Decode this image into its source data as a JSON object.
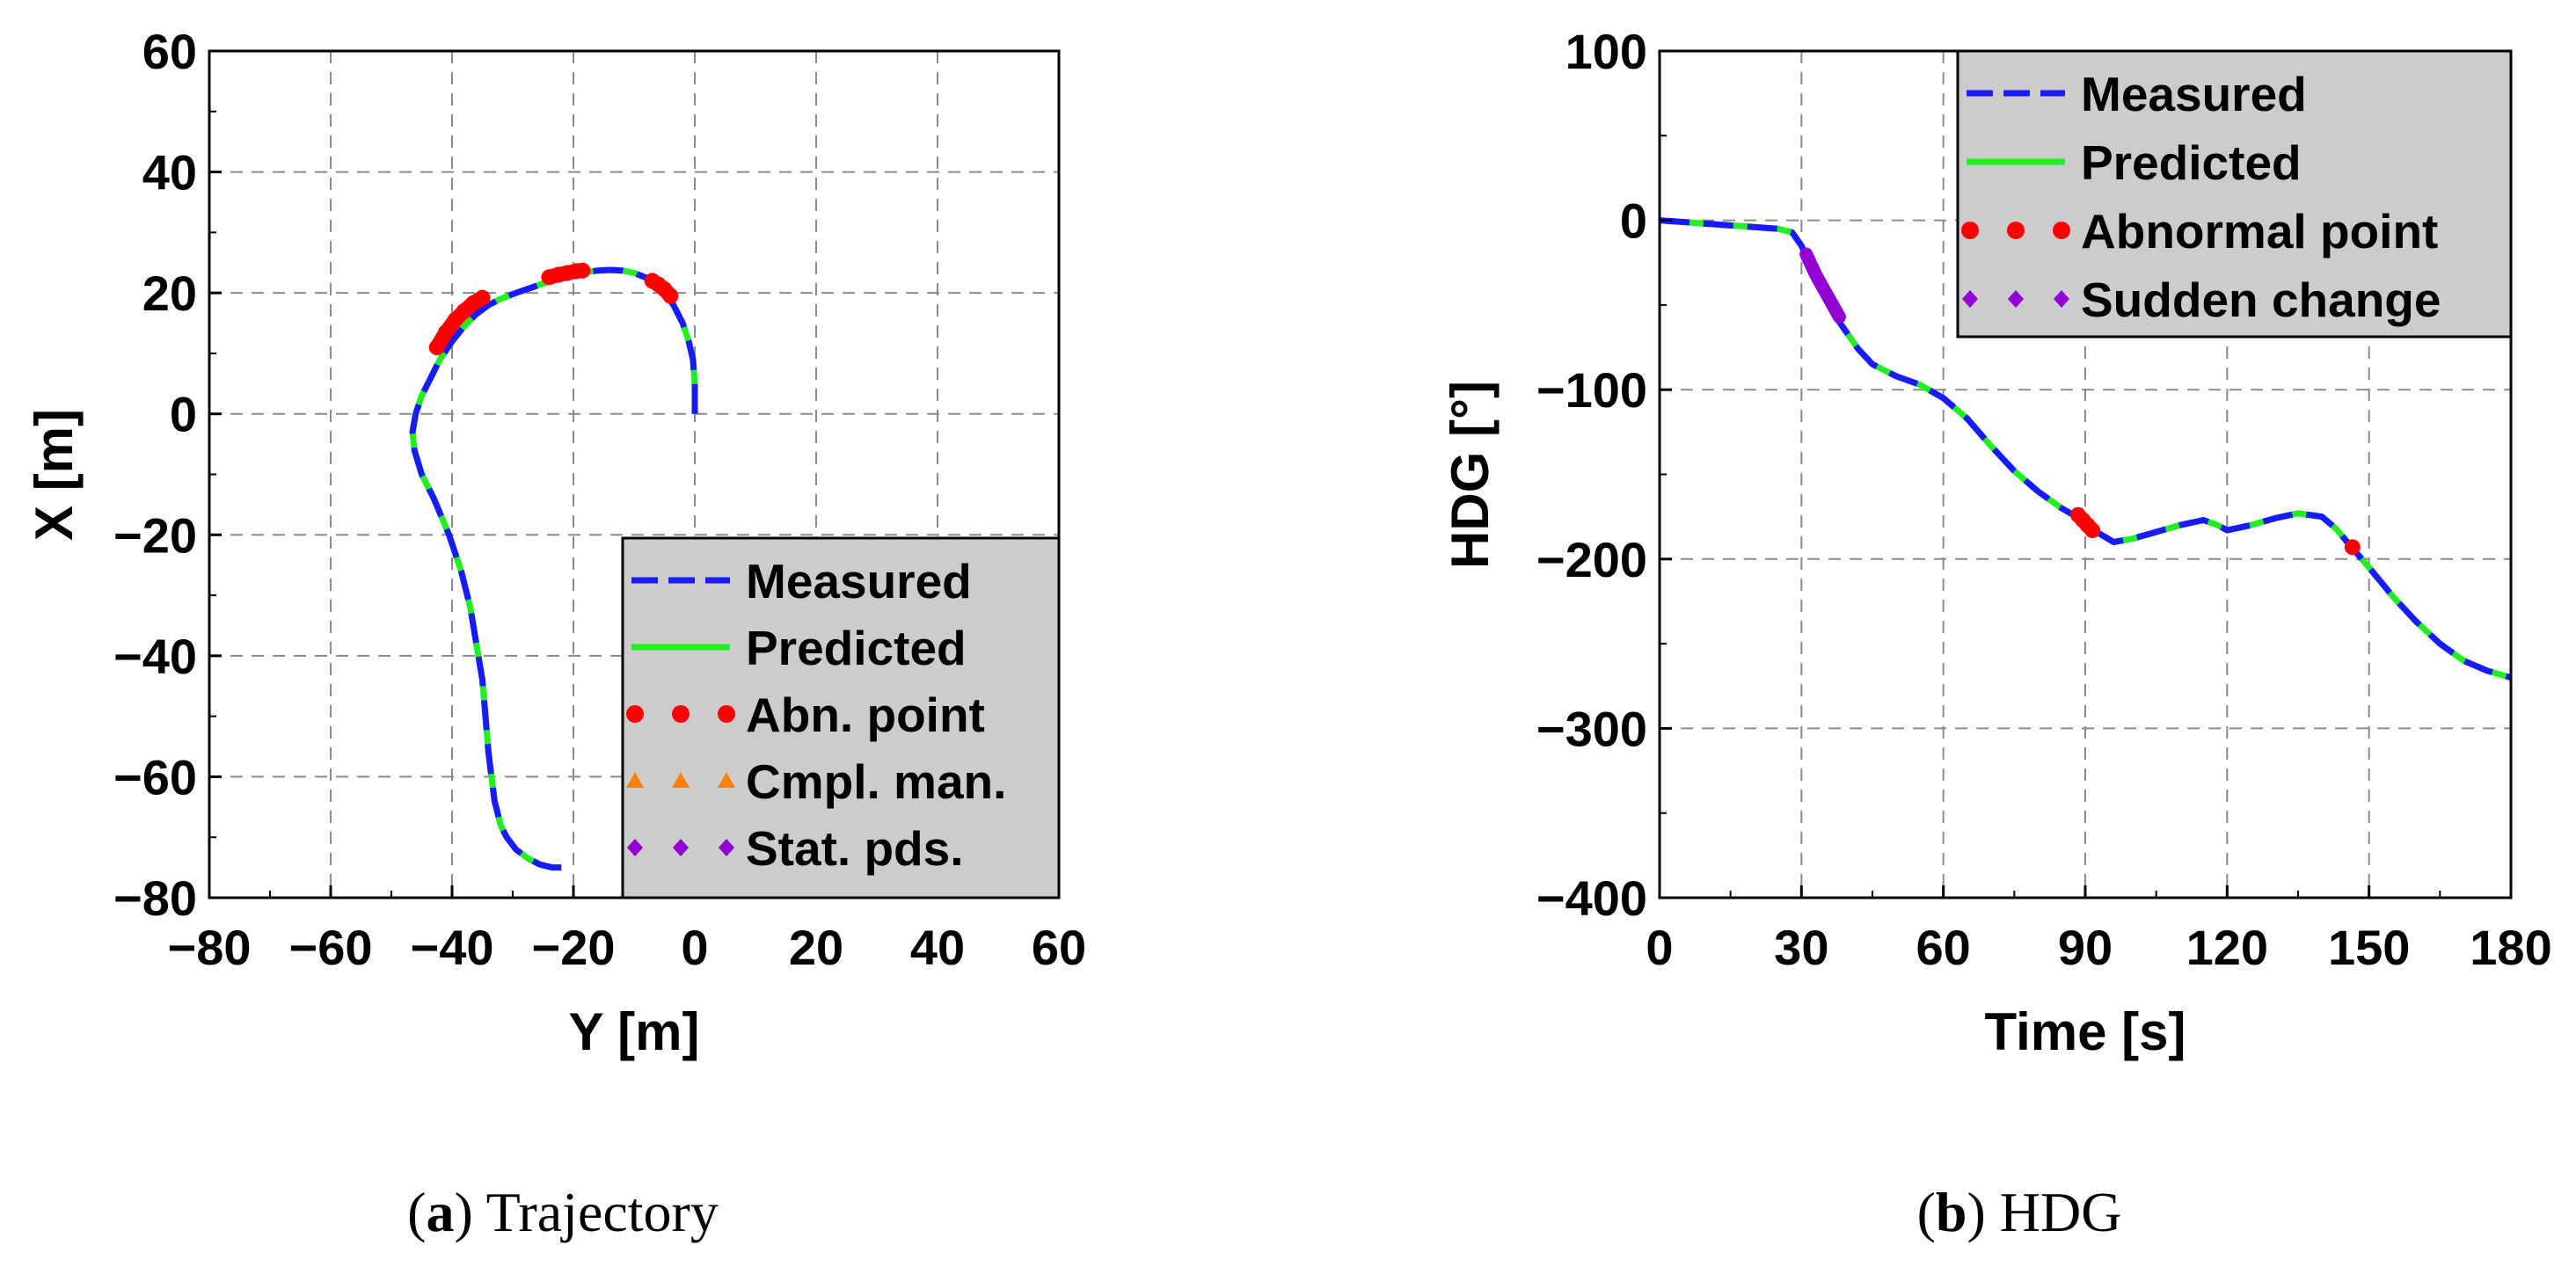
{
  "chart_data": [
    {
      "type": "line",
      "id": "a",
      "caption_letter": "a",
      "caption_text": "Trajectory",
      "xlabel": "Y [m]",
      "ylabel": "X [m]",
      "xlim": [
        -80,
        60
      ],
      "ylim": [
        -80,
        60
      ],
      "xticks": [
        -80,
        -60,
        -40,
        -20,
        0,
        20,
        40,
        60
      ],
      "yticks": [
        -80,
        -60,
        -40,
        -20,
        0,
        20,
        40,
        60
      ],
      "xtick_labels": [
        "−80",
        "−60",
        "−40",
        "−20",
        "0",
        "20",
        "40",
        "60"
      ],
      "ytick_labels": [
        "−80",
        "−60",
        "−40",
        "−20",
        "0",
        "20",
        "40",
        "60"
      ],
      "grid": true,
      "legend_position": "bottom-right",
      "legend": [
        {
          "label": "Measured",
          "style": "dashed-line",
          "color": "#1a1aff"
        },
        {
          "label": "Predicted",
          "style": "solid-line",
          "color": "#22ee22"
        },
        {
          "label": "Abn. point",
          "style": "circle-markers",
          "color": "#ff0000"
        },
        {
          "label": "Cmpl. man.",
          "style": "triangle-markers",
          "color": "#ff7f0e"
        },
        {
          "label": "Stat. pds.",
          "style": "diamond-markers",
          "color": "#9400d3"
        }
      ],
      "series": [
        {
          "name": "Measured",
          "x": [
            0,
            0,
            -0.3,
            -1,
            -2,
            -3.5,
            -5,
            -6.5,
            -8,
            -10,
            -12,
            -14,
            -16,
            -18,
            -20,
            -22,
            -24,
            -26,
            -28,
            -30,
            -32,
            -34,
            -36,
            -38,
            -40,
            -42,
            -43.5,
            -45,
            -46,
            -46.5,
            -46.2,
            -45,
            -43,
            -40.5,
            -38.5,
            -37,
            -36,
            -35,
            -34.5,
            -34,
            -33.5,
            -33,
            -32.5,
            -32,
            -31,
            -29.5,
            -27.5,
            -25.5,
            -23.5,
            -22
          ],
          "y": [
            0,
            5,
            9,
            12,
            15,
            18,
            20,
            21.5,
            22.5,
            23.3,
            23.7,
            23.8,
            23.7,
            23.4,
            23,
            22.5,
            21.9,
            21.2,
            20.5,
            19.8,
            19,
            18,
            16.5,
            14.5,
            12,
            9,
            6,
            3,
            0,
            -3,
            -6,
            -10,
            -14,
            -20,
            -26,
            -32,
            -38,
            -44,
            -50,
            -56,
            -60,
            -64,
            -66,
            -68,
            -70,
            -72,
            -73.5,
            -74.5,
            -75,
            -75
          ]
        },
        {
          "name": "Abn. point",
          "segments": [
            {
              "x": [
                -42.5,
                -41,
                -39.5,
                -38,
                -36.5,
                -35
              ],
              "y": [
                11,
                13.5,
                15.5,
                17,
                18.3,
                19.2
              ]
            },
            {
              "x": [
                -24,
                -22.5,
                -21,
                -19.5,
                -18.5
              ],
              "y": [
                22.6,
                23,
                23.3,
                23.6,
                23.7
              ]
            },
            {
              "x": [
                -7,
                -6,
                -5,
                -4
              ],
              "y": [
                22,
                21.4,
                20.6,
                19.5
              ]
            }
          ]
        }
      ]
    },
    {
      "type": "line",
      "id": "b",
      "caption_letter": "b",
      "caption_text": "HDG",
      "xlabel": "Time [s]",
      "ylabel": "HDG [°]",
      "xlim": [
        0,
        180
      ],
      "ylim": [
        -400,
        100
      ],
      "xticks": [
        0,
        30,
        60,
        90,
        120,
        150,
        180
      ],
      "yticks": [
        -400,
        -300,
        -200,
        -100,
        0,
        100
      ],
      "xtick_labels": [
        "0",
        "30",
        "60",
        "90",
        "120",
        "150",
        "180"
      ],
      "ytick_labels": [
        "−400",
        "−300",
        "−200",
        "−100",
        "0",
        "100"
      ],
      "grid": true,
      "legend_position": "top-right",
      "legend": [
        {
          "label": "Measured",
          "style": "dashed-line",
          "color": "#1a1aff"
        },
        {
          "label": "Predicted",
          "style": "solid-line",
          "color": "#22ee22"
        },
        {
          "label": "Abnormal point",
          "style": "circle-markers",
          "color": "#ff0000"
        },
        {
          "label": "Sudden change",
          "style": "diamond-markers",
          "color": "#9400d3"
        }
      ],
      "series": [
        {
          "name": "Measured",
          "x": [
            0,
            5,
            10,
            15,
            20,
            25,
            28,
            30,
            32,
            34,
            36,
            38,
            40,
            42,
            45,
            50,
            55,
            60,
            65,
            70,
            75,
            80,
            85,
            90,
            93,
            96,
            100,
            105,
            110,
            115,
            118,
            120,
            125,
            130,
            135,
            140,
            143,
            146,
            150,
            155,
            160,
            165,
            170,
            175,
            180
          ],
          "y": [
            0,
            -1,
            -2,
            -3,
            -4,
            -5,
            -7,
            -15,
            -27,
            -38,
            -50,
            -60,
            -68,
            -76,
            -85,
            -92,
            -97,
            -105,
            -117,
            -133,
            -148,
            -160,
            -170,
            -178,
            -185,
            -190,
            -188,
            -184,
            -180,
            -177,
            -180,
            -183,
            -180,
            -176,
            -173,
            -175,
            -182,
            -192,
            -205,
            -222,
            -237,
            -250,
            -260,
            -266,
            -270
          ]
        },
        {
          "name": "Abnormal point",
          "segments": [
            {
              "x": [
                88.5,
                89.5,
                90.5,
                91.5
              ],
              "y": [
                -174,
                -177,
                -180,
                -183
              ]
            },
            {
              "x": [
                146.5
              ],
              "y": [
                -193
              ]
            }
          ]
        },
        {
          "name": "Sudden change",
          "segments": [
            {
              "x": [
                31,
                32,
                33,
                34,
                35,
                36,
                37,
                38
              ],
              "y": [
                -20,
                -26,
                -32,
                -37,
                -42,
                -47,
                -52,
                -57
              ]
            }
          ]
        }
      ]
    }
  ]
}
